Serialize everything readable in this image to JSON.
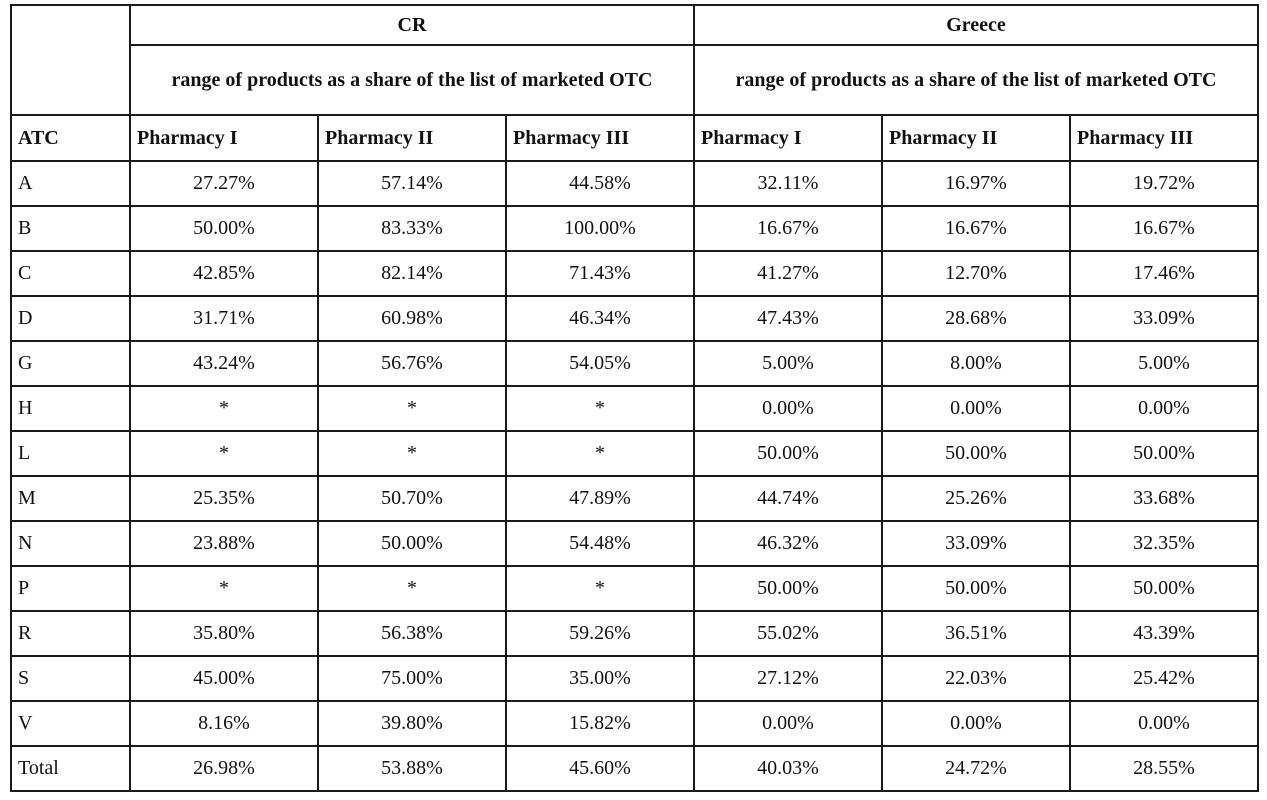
{
  "table": {
    "countries": [
      "CR",
      "Greece"
    ],
    "subheaders": [
      "range of products as a share of the list of marketed OTC",
      "range of products as a share of the list of marketed OTC"
    ],
    "column_headers": [
      "ATC",
      "Pharmacy I",
      "Pharmacy II",
      "Pharmacy III",
      "Pharmacy I",
      "Pharmacy II",
      "Pharmacy III"
    ],
    "rows": [
      [
        "A",
        "27.27%",
        "57.14%",
        "44.58%",
        "32.11%",
        "16.97%",
        "19.72%"
      ],
      [
        "B",
        "50.00%",
        "83.33%",
        "100.00%",
        "16.67%",
        "16.67%",
        "16.67%"
      ],
      [
        "C",
        "42.85%",
        "82.14%",
        "71.43%",
        "41.27%",
        "12.70%",
        "17.46%"
      ],
      [
        "D",
        "31.71%",
        "60.98%",
        "46.34%",
        "47.43%",
        "28.68%",
        "33.09%"
      ],
      [
        "G",
        "43.24%",
        "56.76%",
        "54.05%",
        "5.00%",
        "8.00%",
        "5.00%"
      ],
      [
        "H",
        "*",
        "*",
        "*",
        "0.00%",
        "0.00%",
        "0.00%"
      ],
      [
        "L",
        "*",
        "*",
        "*",
        "50.00%",
        "50.00%",
        "50.00%"
      ],
      [
        "M",
        "25.35%",
        "50.70%",
        "47.89%",
        "44.74%",
        "25.26%",
        "33.68%"
      ],
      [
        "N",
        "23.88%",
        "50.00%",
        "54.48%",
        "46.32%",
        "33.09%",
        "32.35%"
      ],
      [
        "P",
        "*",
        "*",
        "*",
        "50.00%",
        "50.00%",
        "50.00%"
      ],
      [
        "R",
        "35.80%",
        "56.38%",
        "59.26%",
        "55.02%",
        "36.51%",
        "43.39%"
      ],
      [
        "S",
        "45.00%",
        "75.00%",
        "35.00%",
        "27.12%",
        "22.03%",
        "25.42%"
      ],
      [
        "V",
        "8.16%",
        "39.80%",
        "15.82%",
        "0.00%",
        "0.00%",
        "0.00%"
      ],
      [
        "Total",
        "26.98%",
        "53.88%",
        "45.60%",
        "40.03%",
        "24.72%",
        "28.55%"
      ]
    ]
  }
}
